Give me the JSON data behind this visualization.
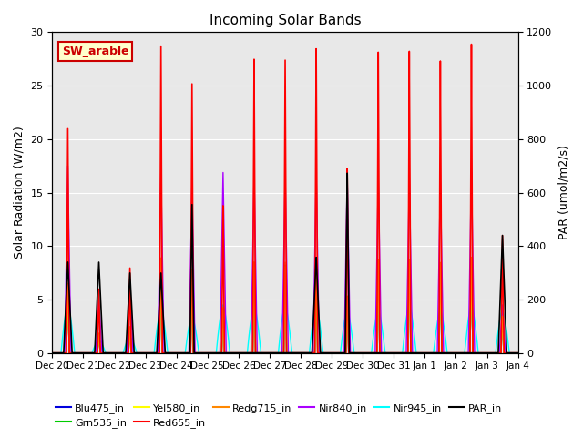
{
  "title": "Incoming Solar Bands",
  "ylabel_left": "Solar Radiation (W/m2)",
  "ylabel_right": "PAR (umol/m2/s)",
  "ylim_left": [
    0,
    30
  ],
  "ylim_right": [
    0,
    1200
  ],
  "bg_color": "#e8e8e8",
  "annotation_text": "SW_arable",
  "annotation_bg": "#ffffcc",
  "annotation_border": "#cc0000",
  "series": {
    "Blu475_in": {
      "color": "#0000dd",
      "lw": 1.0
    },
    "Grn535_in": {
      "color": "#00cc00",
      "lw": 1.0
    },
    "Yel580_in": {
      "color": "#ffff00",
      "lw": 1.0
    },
    "Red655_in": {
      "color": "#ff0000",
      "lw": 1.2
    },
    "Redg715_in": {
      "color": "#ff8800",
      "lw": 1.0
    },
    "Nir840_in": {
      "color": "#aa00ff",
      "lw": 1.0
    },
    "Nir945_in": {
      "color": "#00ffff",
      "lw": 1.0
    },
    "PAR_in": {
      "color": "#000000",
      "lw": 1.2
    }
  },
  "n_days": 15,
  "day_labels": [
    "Dec 20",
    "Dec 21",
    "Dec 22",
    "Dec 23",
    "Dec 24",
    "Dec 25",
    "Dec 26",
    "Dec 27",
    "Dec 28",
    "Dec 29",
    "Dec 30",
    "Dec 31",
    "Jan 1",
    "Jan 2",
    "Jan 3",
    "Jan 4"
  ],
  "peaks": [
    {
      "day": 0,
      "red": 21.0,
      "nir840": 17.5,
      "nir945": 4.5,
      "lower": 8.5,
      "par": 8.5,
      "par_narrow": false
    },
    {
      "day": 1,
      "red": 6.0,
      "nir840": 5.0,
      "nir945": 1.2,
      "lower": 2.5,
      "par": 8.5,
      "par_narrow": false
    },
    {
      "day": 2,
      "red": 8.0,
      "nir840": 6.5,
      "nir945": 1.5,
      "lower": 3.0,
      "par": 7.5,
      "par_narrow": false
    },
    {
      "day": 3,
      "red": 29.0,
      "nir840": 17.0,
      "nir945": 4.0,
      "lower": 8.0,
      "par": 7.5,
      "par_narrow": false
    },
    {
      "day": 4,
      "red": 25.5,
      "nir840": 16.0,
      "nir945": 3.5,
      "lower": 8.5,
      "par": 14.0,
      "par_narrow": true
    },
    {
      "day": 5,
      "red": 14.0,
      "nir840": 17.0,
      "nir945": 4.5,
      "lower": 8.5,
      "par": 0.0,
      "par_narrow": false
    },
    {
      "day": 6,
      "red": 28.0,
      "nir840": 17.0,
      "nir945": 4.5,
      "lower": 8.5,
      "par": 0.0,
      "par_narrow": false
    },
    {
      "day": 7,
      "red": 28.0,
      "nir840": 17.0,
      "nir945": 4.5,
      "lower": 9.0,
      "par": 0.0,
      "par_narrow": false
    },
    {
      "day": 8,
      "red": 29.0,
      "nir840": 17.0,
      "nir945": 4.5,
      "lower": 9.0,
      "par": 9.0,
      "par_narrow": false
    },
    {
      "day": 9,
      "red": 17.5,
      "nir840": 16.5,
      "nir945": 4.0,
      "lower": 8.5,
      "par": 17.0,
      "par_narrow": true
    },
    {
      "day": 10,
      "red": 28.5,
      "nir840": 16.5,
      "nir945": 4.0,
      "lower": 8.5,
      "par": 0.0,
      "par_narrow": false
    },
    {
      "day": 11,
      "red": 28.5,
      "nir840": 16.5,
      "nir945": 4.5,
      "lower": 8.5,
      "par": 0.0,
      "par_narrow": false
    },
    {
      "day": 12,
      "red": 27.5,
      "nir840": 16.0,
      "nir945": 4.0,
      "lower": 8.5,
      "par": 0.0,
      "par_narrow": false
    },
    {
      "day": 13,
      "red": 29.0,
      "nir840": 17.0,
      "nir945": 4.5,
      "lower": 8.5,
      "par": 0.0,
      "par_narrow": false
    },
    {
      "day": 14,
      "red": 11.0,
      "nir840": 4.5,
      "nir945": 4.0,
      "lower": 8.5,
      "par": 11.0,
      "par_narrow": false
    }
  ],
  "band_fractions": {
    "Blu475_in": 0.29,
    "Grn535_in": 0.3,
    "Yel580_in": 0.295,
    "Red655_in": 1.0,
    "Redg715_in": 0.31
  }
}
